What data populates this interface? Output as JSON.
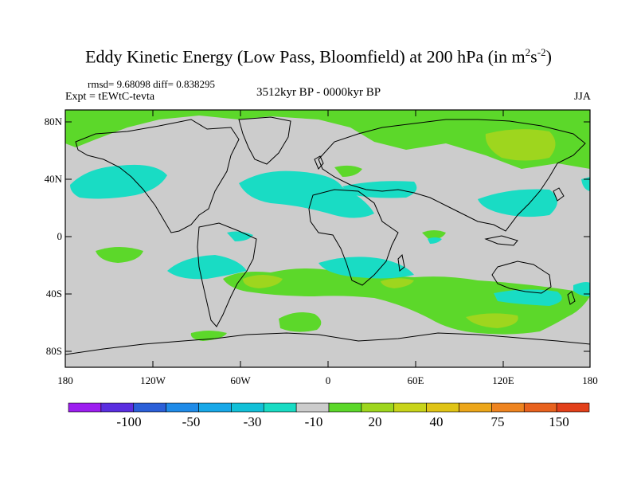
{
  "title": {
    "main": "Eddy Kinetic Energy (Low Pass, Bloomfield) at 200 hPa (in m",
    "sup1": "2",
    "mid": "s",
    "sup2": "-2",
    "end": ")"
  },
  "stats": "rmsd= 9.68098 diff= 0.838295",
  "experiment": "Expt = tEWtC-tevta",
  "period": "3512kyr BP - 0000kyr BP",
  "season": "JJA",
  "axes": {
    "lat_labels": [
      "80N",
      "40N",
      "0",
      "40S",
      "80S"
    ],
    "lon_labels": [
      "180",
      "120W",
      "60W",
      "0",
      "60E",
      "120E",
      "180"
    ]
  },
  "colorbar": {
    "colors": [
      "#9d1ef0",
      "#5a2ee0",
      "#2b5fd8",
      "#1f8be8",
      "#18a8e8",
      "#12c0d8",
      "#19dcc4",
      "#cccccc",
      "#5cd82a",
      "#9ed61e",
      "#c8d41a",
      "#e0c416",
      "#eca61a",
      "#ee8420",
      "#e8621e",
      "#e2401a"
    ],
    "labels": [
      "-100",
      "-50",
      "-30",
      "-10",
      "20",
      "40",
      "75",
      "150"
    ]
  },
  "colors": {
    "background_field": "#cccccc",
    "positive_light": "#5cd82a",
    "positive_mid": "#9ed61e",
    "negative_light": "#19dcc4",
    "coast": "#000000"
  }
}
